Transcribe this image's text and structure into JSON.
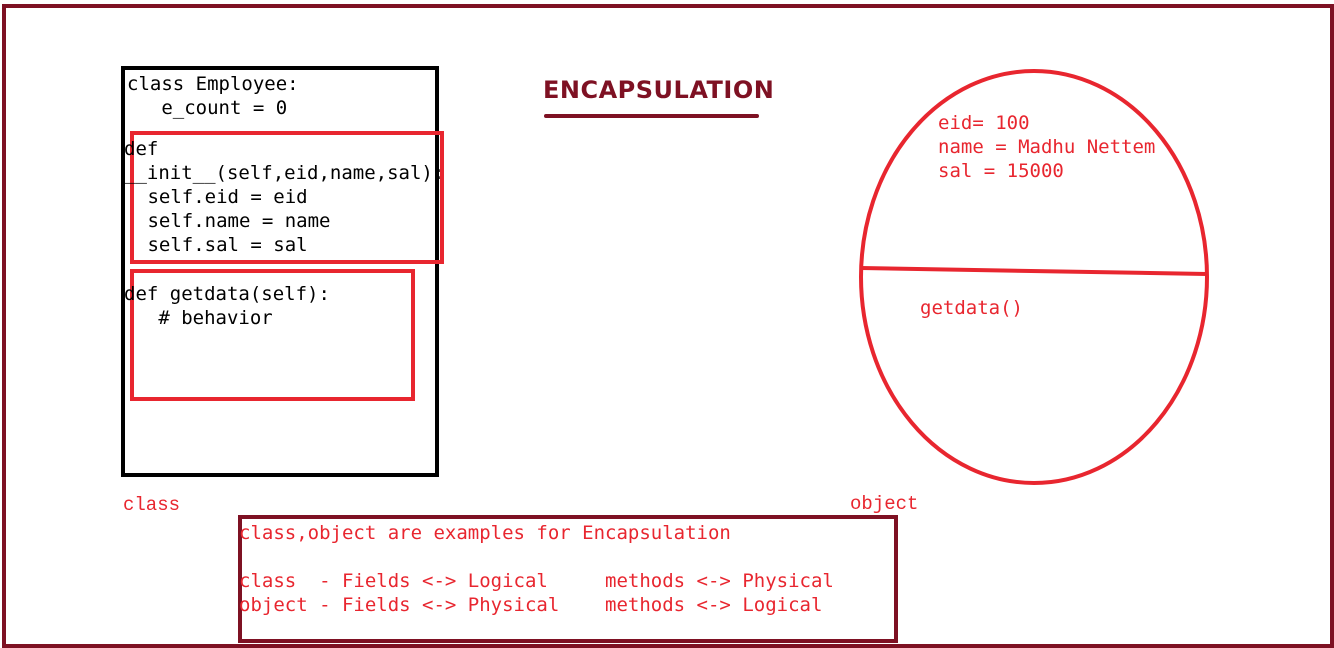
{
  "title": "ENCAPSULATION",
  "class_code": {
    "header": "class Employee:",
    "field": "   e_count = 0",
    "init_def": "def",
    "init_sig": "__init__(self,eid,name,sal):",
    "init_body": [
      " self.eid = eid",
      " self.name = name",
      " self.sal = sal"
    ],
    "getdata_sig": "def getdata(self):",
    "getdata_body": "   # behavior"
  },
  "object_state": {
    "fields": [
      "eid= 100",
      "name = Madhu Nettem",
      "sal = 15000"
    ],
    "method": "getdata()"
  },
  "labels": {
    "class": "class",
    "object": "object"
  },
  "note": {
    "line1": "class,object are examples for Encapsulation",
    "line2": "class  - Fields <-> Logical     methods <-> Physical",
    "line3": "object - Fields <-> Physical    methods <-> Logical"
  },
  "colors": {
    "frame": "#7e1123",
    "accent": "#e8262f",
    "code": "#000000"
  }
}
